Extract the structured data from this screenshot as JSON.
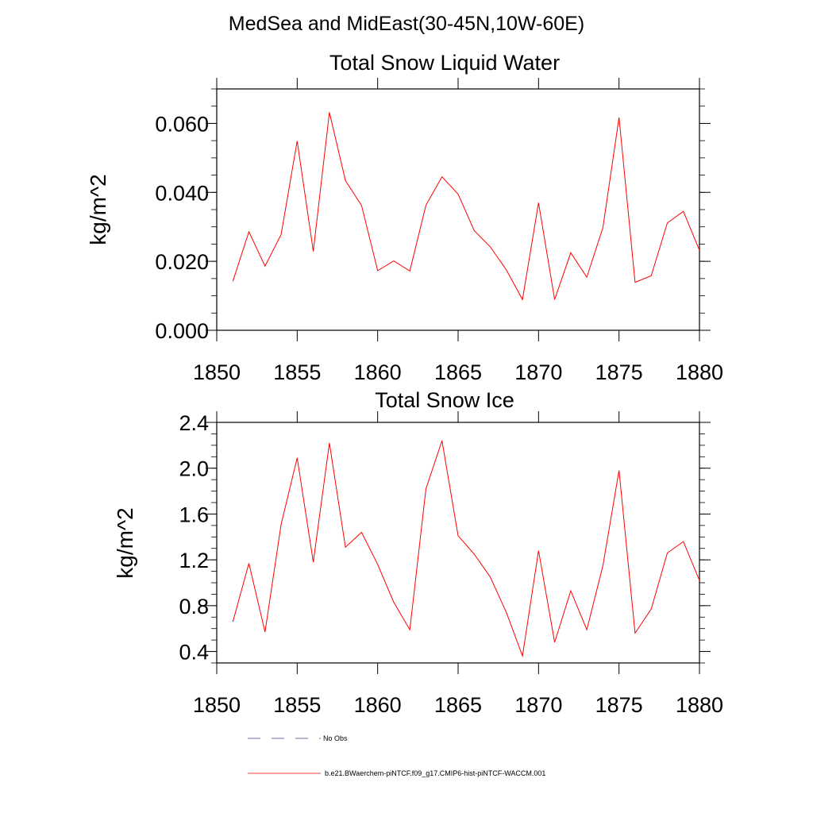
{
  "page": {
    "title": "MedSea and MidEast(30-45N,10W-60E)"
  },
  "chart_data": [
    {
      "type": "line",
      "title": "Total Snow Liquid Water",
      "xlabel": "",
      "ylabel": "kg/m^2",
      "xlim": [
        1850,
        1880
      ],
      "ylim": [
        0.0,
        0.07
      ],
      "xticks": [
        1850,
        1855,
        1860,
        1865,
        1870,
        1875,
        1880
      ],
      "xtick_labels": [
        "1850",
        "1855",
        "1860",
        "1865",
        "1870",
        "1875",
        "1880"
      ],
      "yticks": [
        0.0,
        0.02,
        0.04,
        0.06
      ],
      "ytick_labels": [
        "0.000",
        "0.020",
        "0.040",
        "0.060"
      ],
      "x": [
        1851,
        1852,
        1853,
        1854,
        1855,
        1856,
        1857,
        1858,
        1859,
        1860,
        1861,
        1862,
        1863,
        1864,
        1865,
        1866,
        1867,
        1868,
        1869,
        1870,
        1871,
        1872,
        1873,
        1874,
        1875,
        1876,
        1877,
        1878,
        1879,
        1880
      ],
      "series": [
        {
          "name": "b.e21.BWaerchem-piNTCF.f09_g17.CMIP6-hist-piNTCF-WACCM.001",
          "color": "#ff0000",
          "values": [
            0.0142,
            0.0286,
            0.0186,
            0.0278,
            0.0549,
            0.0229,
            0.0632,
            0.0434,
            0.0362,
            0.0173,
            0.0201,
            0.0172,
            0.0363,
            0.0445,
            0.0395,
            0.0289,
            0.0242,
            0.0175,
            0.0089,
            0.037,
            0.0089,
            0.0225,
            0.0154,
            0.0298,
            0.0617,
            0.0139,
            0.0158,
            0.0311,
            0.0345,
            0.0232
          ]
        }
      ]
    },
    {
      "type": "line",
      "title": "Total Snow Ice",
      "xlabel": "",
      "ylabel": "kg/m^2",
      "xlim": [
        1850,
        1880
      ],
      "ylim": [
        0.3,
        2.4
      ],
      "xticks": [
        1850,
        1855,
        1860,
        1865,
        1870,
        1875,
        1880
      ],
      "xtick_labels": [
        "1850",
        "1855",
        "1860",
        "1865",
        "1870",
        "1875",
        "1880"
      ],
      "yticks": [
        0.4,
        0.8,
        1.2,
        1.6,
        2.0,
        2.4
      ],
      "ytick_labels": [
        "0.4",
        "0.8",
        "1.2",
        "1.6",
        "2.0",
        "2.4"
      ],
      "x": [
        1851,
        1852,
        1853,
        1854,
        1855,
        1856,
        1857,
        1858,
        1859,
        1860,
        1861,
        1862,
        1863,
        1864,
        1865,
        1866,
        1867,
        1868,
        1869,
        1870,
        1871,
        1872,
        1873,
        1874,
        1875,
        1876,
        1877,
        1878,
        1879,
        1880
      ],
      "series": [
        {
          "name": "b.e21.BWaerchem-piNTCF.f09_g17.CMIP6-hist-piNTCF-WACCM.001",
          "color": "#ff0000",
          "values": [
            0.66,
            1.17,
            0.57,
            1.51,
            2.09,
            1.18,
            2.22,
            1.31,
            1.44,
            1.16,
            0.83,
            0.59,
            1.82,
            2.24,
            1.41,
            1.25,
            1.05,
            0.74,
            0.36,
            1.28,
            0.48,
            0.93,
            0.59,
            1.15,
            1.98,
            0.56,
            0.77,
            1.26,
            1.36,
            1.02
          ]
        }
      ]
    }
  ],
  "legend": {
    "items": [
      {
        "label": "No Obs",
        "color": "#3a3a8c",
        "style": "dashed"
      },
      {
        "label": "b.e21.BWaerchem-piNTCF.f09_g17.CMIP6-hist-piNTCF-WACCM.001",
        "color": "#ff0000",
        "style": "solid"
      }
    ]
  }
}
